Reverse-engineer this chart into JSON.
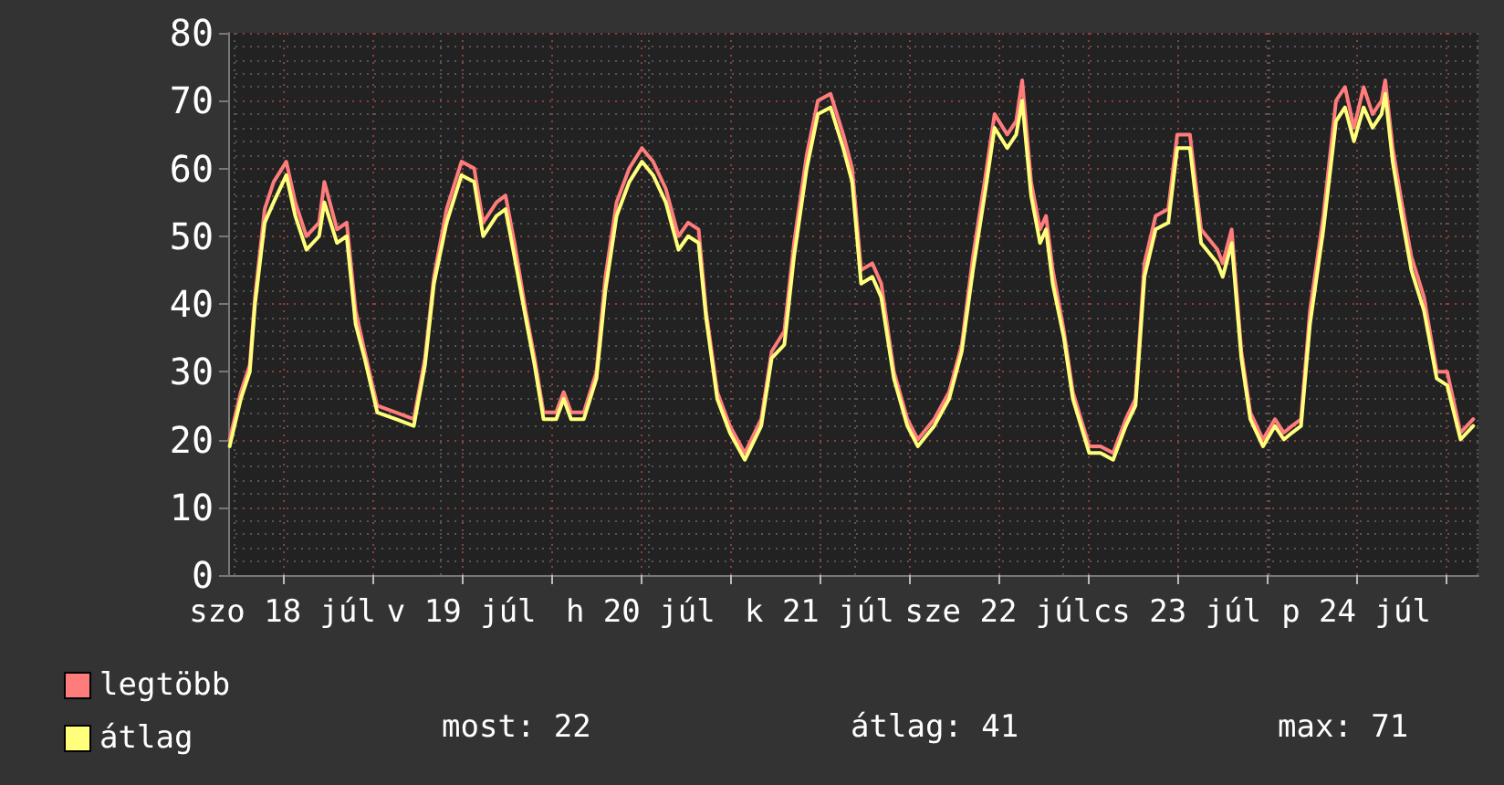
{
  "chart_data": {
    "type": "line",
    "x": [
      "--07-18T04:54",
      "--07-18T06:24",
      "--07-18T07:36",
      "--07-18T08:18",
      "--07-18T09:36",
      "--07-18T10:48",
      "--07-18T12:30",
      "--07-18T13:42",
      "--07-18T15:12",
      "--07-18T16:54",
      "--07-18T17:36",
      "--07-18T19:18",
      "--07-18T20:36",
      "--07-18T21:48",
      "--07-18T23:00",
      "--07-19T00:42",
      "--07-19T03:12",
      "--07-19T05:36",
      "--07-19T07:06",
      "--07-19T08:18",
      "--07-19T10:00",
      "--07-19T12:00",
      "--07-19T13:42",
      "--07-19T14:54",
      "--07-19T16:42",
      "--07-19T17:54",
      "--07-19T19:06",
      "--07-19T20:36",
      "--07-19T21:48",
      "--07-19T23:00",
      "--07-20T00:42",
      "--07-20T01:42",
      "--07-20T02:42",
      "--07-20T04:24",
      "--07-20T06:06",
      "--07-20T07:18",
      "--07-20T08:48",
      "--07-20T10:30",
      "--07-20T12:12",
      "--07-20T13:42",
      "--07-20T15:24",
      "--07-20T17:06",
      "--07-20T18:24",
      "--07-20T19:48",
      "--07-20T20:48",
      "--07-20T22:18",
      "--07-21T00:00",
      "--07-21T02:00",
      "--07-21T04:12",
      "--07-21T05:36",
      "--07-21T07:18",
      "--07-21T08:36",
      "--07-21T10:18",
      "--07-21T11:48",
      "--07-21T13:30",
      "--07-21T15:12",
      "--07-21T16:24",
      "--07-21T17:36",
      "--07-21T19:06",
      "--07-21T20:18",
      "--07-21T22:00",
      "--07-21T23:48",
      "--07-22T01:12",
      "--07-22T03:24",
      "--07-22T05:24",
      "--07-22T07:06",
      "--07-22T08:36",
      "--07-22T10:18",
      "--07-22T11:30",
      "--07-22T13:12",
      "--07-22T14:24",
      "--07-22T15:12",
      "--07-22T16:24",
      "--07-22T17:36",
      "--07-22T18:24",
      "--07-22T19:18",
      "--07-22T20:48",
      "--07-22T22:00",
      "--07-23T00:12",
      "--07-23T01:42",
      "--07-23T03:24",
      "--07-23T05:06",
      "--07-23T06:24",
      "--07-23T07:36",
      "--07-23T09:06",
      "--07-23T10:48",
      "--07-23T12:00",
      "--07-23T13:42",
      "--07-23T15:12",
      "--07-23T17:24",
      "--07-23T18:06",
      "--07-23T19:18",
      "--07-23T20:36",
      "--07-23T21:48",
      "--07-23T23:30",
      "--07-24T01:06",
      "--07-24T02:18",
      "--07-24T03:24",
      "--07-24T04:36",
      "--07-24T05:48",
      "--07-24T07:36",
      "--07-24T09:18",
      "--07-24T10:30",
      "--07-24T11:42",
      "--07-24T13:00",
      "--07-24T14:12",
      "--07-24T15:24",
      "--07-24T15:54",
      "--07-24T16:54",
      "--07-24T18:06",
      "--07-24T19:24",
      "--07-24T21:06",
      "--07-24T22:48",
      "--07-25T00:12",
      "--07-25T02:00",
      "--07-25T03:42"
    ],
    "series": [
      {
        "name": "legtöbb",
        "color": "#ff7c7c",
        "values": [
          20,
          27,
          31,
          41,
          54,
          58,
          61,
          55,
          50,
          52,
          58,
          51,
          52,
          39,
          33,
          25,
          24,
          23,
          32,
          44,
          54,
          61,
          60,
          52,
          55,
          56,
          49,
          39,
          32,
          24,
          24,
          27,
          24,
          24,
          30,
          44,
          55,
          60,
          63,
          61,
          57,
          50,
          52,
          51,
          39,
          27,
          22,
          18,
          23,
          33,
          36,
          49,
          62,
          70,
          71,
          65,
          60,
          45,
          46,
          43,
          30,
          23,
          20,
          23,
          27,
          34,
          47,
          59,
          68,
          65,
          67,
          73,
          58,
          51,
          53,
          45,
          36,
          27,
          19,
          19,
          18,
          23,
          26,
          46,
          53,
          54,
          65,
          65,
          51,
          48,
          46,
          51,
          33,
          24,
          20,
          23,
          21,
          22,
          23,
          39,
          53,
          70,
          72,
          66,
          72,
          68,
          70,
          73,
          63,
          55,
          47,
          41,
          30,
          30,
          21,
          23
        ]
      },
      {
        "name": "átlag",
        "color": "#ffff7c",
        "values": [
          19,
          26,
          30,
          40,
          52,
          55,
          59,
          53,
          48,
          50,
          55,
          49,
          50,
          37,
          32,
          24,
          23,
          22,
          31,
          43,
          52,
          59,
          58,
          50,
          53,
          54,
          47,
          38,
          31,
          23,
          23,
          26,
          23,
          23,
          29,
          42,
          53,
          58,
          61,
          59,
          55,
          48,
          50,
          49,
          38,
          26,
          21,
          17,
          22,
          32,
          34,
          47,
          60,
          68,
          69,
          63,
          58,
          43,
          44,
          41,
          29,
          22,
          19,
          22,
          26,
          33,
          45,
          57,
          66,
          63,
          65,
          70,
          56,
          49,
          51,
          43,
          35,
          26,
          18,
          18,
          17,
          22,
          25,
          44,
          51,
          52,
          63,
          63,
          49,
          46,
          44,
          49,
          32,
          23,
          19,
          22,
          20,
          21,
          22,
          37,
          51,
          67,
          69,
          64,
          69,
          66,
          68,
          71,
          61,
          53,
          45,
          39,
          29,
          28,
          20,
          22
        ]
      }
    ],
    "xlim": [
      "--07-18T04:42",
      "--07-25T04:24"
    ],
    "xticks": [
      {
        "value": "--07-18T12:00",
        "label": "szo 18 júl"
      },
      {
        "value": "--07-19T00:00",
        "label": null
      },
      {
        "value": "--07-19T12:00",
        "label": "v 19 júl"
      },
      {
        "value": "--07-20T00:00",
        "label": null
      },
      {
        "value": "--07-20T12:00",
        "label": "h 20 júl"
      },
      {
        "value": "--07-21T00:00",
        "label": null
      },
      {
        "value": "--07-21T12:00",
        "label": "k 21 júl"
      },
      {
        "value": "--07-22T00:00",
        "label": null
      },
      {
        "value": "--07-22T12:00",
        "label": "sze 22 júl"
      },
      {
        "value": "--07-23T00:00",
        "label": null
      },
      {
        "value": "--07-23T12:00",
        "label": "cs 23 júl"
      },
      {
        "value": "--07-24T00:00",
        "label": null
      },
      {
        "value": "--07-24T12:00",
        "label": "p 24 júl"
      },
      {
        "value": "--07-25T00:00",
        "label": null
      }
    ],
    "ylim": [
      0,
      80
    ],
    "yticks": [
      0,
      10,
      20,
      30,
      40,
      50,
      60,
      70,
      80
    ],
    "grid": true,
    "legend": "bottom left",
    "marker": "none",
    "line_style": "solid",
    "annotations": [
      "most: 22",
      "átlag: 41",
      "max: 71"
    ]
  }
}
